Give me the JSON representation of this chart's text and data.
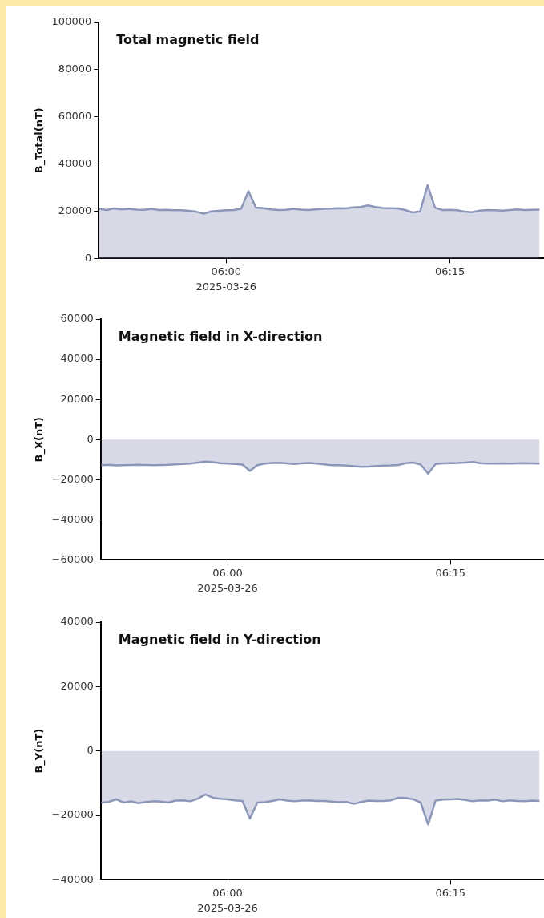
{
  "chart_data": [
    {
      "type": "area",
      "title": "Total magnetic field",
      "ylabel": "B_Total(nT)",
      "x": [
        "2025-03-26T05:51:30",
        "2025-03-26T05:52:00",
        "2025-03-26T05:52:30",
        "2025-03-26T05:53:00",
        "2025-03-26T05:53:30",
        "2025-03-26T05:54:00",
        "2025-03-26T05:54:30",
        "2025-03-26T05:55:00",
        "2025-03-26T05:55:30",
        "2025-03-26T05:56:00",
        "2025-03-26T05:56:30",
        "2025-03-26T05:57:00",
        "2025-03-26T05:57:30",
        "2025-03-26T05:58:00",
        "2025-03-26T05:58:30",
        "2025-03-26T05:59:00",
        "2025-03-26T05:59:30",
        "2025-03-26T06:00:00",
        "2025-03-26T06:00:30",
        "2025-03-26T06:01:00",
        "2025-03-26T06:01:30",
        "2025-03-26T06:02:00",
        "2025-03-26T06:02:30",
        "2025-03-26T06:03:00",
        "2025-03-26T06:03:30",
        "2025-03-26T06:04:00",
        "2025-03-26T06:04:30",
        "2025-03-26T06:05:00",
        "2025-03-26T06:05:30",
        "2025-03-26T06:06:00",
        "2025-03-26T06:06:30",
        "2025-03-26T06:07:00",
        "2025-03-26T06:07:30",
        "2025-03-26T06:08:00",
        "2025-03-26T06:08:30",
        "2025-03-26T06:09:00",
        "2025-03-26T06:09:30",
        "2025-03-26T06:10:00",
        "2025-03-26T06:10:30",
        "2025-03-26T06:11:00",
        "2025-03-26T06:11:30",
        "2025-03-26T06:12:00",
        "2025-03-26T06:12:30",
        "2025-03-26T06:13:00",
        "2025-03-26T06:13:30",
        "2025-03-26T06:14:00",
        "2025-03-26T06:14:30",
        "2025-03-26T06:15:00",
        "2025-03-26T06:15:30",
        "2025-03-26T06:16:00",
        "2025-03-26T06:16:30",
        "2025-03-26T06:17:00",
        "2025-03-26T06:17:30",
        "2025-03-26T06:18:00",
        "2025-03-26T06:18:30",
        "2025-03-26T06:19:00",
        "2025-03-26T06:19:30",
        "2025-03-26T06:20:00",
        "2025-03-26T06:20:30",
        "2025-03-26T06:21:00"
      ],
      "series": [
        {
          "color": "#8c96b8",
          "values": [
            21000,
            20500,
            21200,
            20800,
            21000,
            20700,
            20600,
            21000,
            20500,
            20600,
            20400,
            20400,
            20200,
            19800,
            19000,
            19900,
            20200,
            20400,
            20500,
            21000,
            28500,
            21500,
            21300,
            20800,
            20500,
            20600,
            21000,
            20700,
            20500,
            20800,
            21000,
            21100,
            21300,
            21200,
            21600,
            21800,
            22500,
            21800,
            21400,
            21300,
            21200,
            20500,
            19500,
            19900,
            31000,
            21500,
            20500,
            20600,
            20400,
            19800,
            19600,
            20300,
            20500,
            20400,
            20300,
            20500,
            20800,
            20500,
            20600,
            20700
          ]
        }
      ],
      "xlim": [
        "2025-03-26T05:51:28",
        "2025-03-26T06:21:18"
      ],
      "xticks": [
        {
          "value": "2025-03-26T06:00",
          "label": "06:00"
        },
        {
          "value": "2025-03-26T06:15",
          "label": "06:15"
        }
      ],
      "annotations": [
        "2025-03-26"
      ],
      "ylim": [
        0,
        100000
      ],
      "yticks": [
        0,
        20000,
        40000,
        60000,
        80000,
        100000
      ],
      "grid": false,
      "legend": false,
      "marker": "none"
    },
    {
      "type": "area",
      "title": "Magnetic field in X-direction",
      "ylabel": "B_X(nT)",
      "x": [
        "2025-03-26T05:51:30",
        "2025-03-26T05:52:00",
        "2025-03-26T05:52:30",
        "2025-03-26T05:53:00",
        "2025-03-26T05:53:30",
        "2025-03-26T05:54:00",
        "2025-03-26T05:54:30",
        "2025-03-26T05:55:00",
        "2025-03-26T05:55:30",
        "2025-03-26T05:56:00",
        "2025-03-26T05:56:30",
        "2025-03-26T05:57:00",
        "2025-03-26T05:57:30",
        "2025-03-26T05:58:00",
        "2025-03-26T05:58:30",
        "2025-03-26T05:59:00",
        "2025-03-26T05:59:30",
        "2025-03-26T06:00:00",
        "2025-03-26T06:00:30",
        "2025-03-26T06:01:00",
        "2025-03-26T06:01:30",
        "2025-03-26T06:02:00",
        "2025-03-26T06:02:30",
        "2025-03-26T06:03:00",
        "2025-03-26T06:03:30",
        "2025-03-26T06:04:00",
        "2025-03-26T06:04:30",
        "2025-03-26T06:05:00",
        "2025-03-26T06:05:30",
        "2025-03-26T06:06:00",
        "2025-03-26T06:06:30",
        "2025-03-26T06:07:00",
        "2025-03-26T06:07:30",
        "2025-03-26T06:08:00",
        "2025-03-26T06:08:30",
        "2025-03-26T06:09:00",
        "2025-03-26T06:09:30",
        "2025-03-26T06:10:00",
        "2025-03-26T06:10:30",
        "2025-03-26T06:11:00",
        "2025-03-26T06:11:30",
        "2025-03-26T06:12:00",
        "2025-03-26T06:12:30",
        "2025-03-26T06:13:00",
        "2025-03-26T06:13:30",
        "2025-03-26T06:14:00",
        "2025-03-26T06:14:30",
        "2025-03-26T06:15:00",
        "2025-03-26T06:15:30",
        "2025-03-26T06:16:00",
        "2025-03-26T06:16:30",
        "2025-03-26T06:17:00",
        "2025-03-26T06:17:30",
        "2025-03-26T06:18:00",
        "2025-03-26T06:18:30",
        "2025-03-26T06:19:00",
        "2025-03-26T06:19:30",
        "2025-03-26T06:20:00",
        "2025-03-26T06:20:30",
        "2025-03-26T06:21:00"
      ],
      "series": [
        {
          "color": "#8c96b8",
          "values": [
            -12800,
            -12600,
            -12900,
            -12800,
            -12700,
            -12600,
            -12700,
            -12800,
            -12700,
            -12600,
            -12400,
            -12200,
            -12000,
            -11500,
            -11000,
            -11300,
            -11800,
            -12000,
            -12200,
            -12500,
            -15600,
            -12800,
            -12000,
            -11700,
            -11600,
            -11900,
            -12200,
            -11900,
            -11700,
            -12000,
            -12400,
            -12800,
            -12800,
            -13000,
            -13300,
            -13600,
            -13500,
            -13200,
            -13000,
            -12900,
            -12700,
            -11800,
            -11500,
            -12500,
            -17000,
            -12200,
            -11900,
            -11800,
            -11700,
            -11500,
            -11200,
            -11800,
            -12000,
            -12000,
            -11900,
            -12000,
            -11900,
            -11800,
            -11900,
            -12000
          ]
        }
      ],
      "xlim": [
        "2025-03-26T05:51:28",
        "2025-03-26T06:21:18"
      ],
      "xticks": [
        {
          "value": "2025-03-26T06:00",
          "label": "06:00"
        },
        {
          "value": "2025-03-26T06:15",
          "label": "06:15"
        }
      ],
      "annotations": [
        "2025-03-26"
      ],
      "ylim": [
        -60000,
        60000
      ],
      "yticks": [
        -60000,
        -40000,
        -20000,
        0,
        20000,
        40000,
        60000
      ],
      "grid": false,
      "legend": false,
      "marker": "none"
    },
    {
      "type": "area",
      "title": "Magnetic field in Y-direction",
      "ylabel": "B_Y(nT)",
      "x": [
        "2025-03-26T05:51:30",
        "2025-03-26T05:52:00",
        "2025-03-26T05:52:30",
        "2025-03-26T05:53:00",
        "2025-03-26T05:53:30",
        "2025-03-26T05:54:00",
        "2025-03-26T05:54:30",
        "2025-03-26T05:55:00",
        "2025-03-26T05:55:30",
        "2025-03-26T05:56:00",
        "2025-03-26T05:56:30",
        "2025-03-26T05:57:00",
        "2025-03-26T05:57:30",
        "2025-03-26T05:58:00",
        "2025-03-26T05:58:30",
        "2025-03-26T05:59:00",
        "2025-03-26T05:59:30",
        "2025-03-26T06:00:00",
        "2025-03-26T06:00:30",
        "2025-03-26T06:01:00",
        "2025-03-26T06:01:30",
        "2025-03-26T06:02:00",
        "2025-03-26T06:02:30",
        "2025-03-26T06:03:00",
        "2025-03-26T06:03:30",
        "2025-03-26T06:04:00",
        "2025-03-26T06:04:30",
        "2025-03-26T06:05:00",
        "2025-03-26T06:05:30",
        "2025-03-26T06:06:00",
        "2025-03-26T06:06:30",
        "2025-03-26T06:07:00",
        "2025-03-26T06:07:30",
        "2025-03-26T06:08:00",
        "2025-03-26T06:08:30",
        "2025-03-26T06:09:00",
        "2025-03-26T06:09:30",
        "2025-03-26T06:10:00",
        "2025-03-26T06:10:30",
        "2025-03-26T06:11:00",
        "2025-03-26T06:11:30",
        "2025-03-26T06:12:00",
        "2025-03-26T06:12:30",
        "2025-03-26T06:13:00",
        "2025-03-26T06:13:30",
        "2025-03-26T06:14:00",
        "2025-03-26T06:14:30",
        "2025-03-26T06:15:00",
        "2025-03-26T06:15:30",
        "2025-03-26T06:16:00",
        "2025-03-26T06:16:30",
        "2025-03-26T06:17:00",
        "2025-03-26T06:17:30",
        "2025-03-26T06:18:00",
        "2025-03-26T06:18:30",
        "2025-03-26T06:19:00",
        "2025-03-26T06:19:30",
        "2025-03-26T06:20:00",
        "2025-03-26T06:20:30",
        "2025-03-26T06:21:00"
      ],
      "series": [
        {
          "color": "#8c96b8",
          "values": [
            -16000,
            -15800,
            -15000,
            -16000,
            -15600,
            -16200,
            -15800,
            -15600,
            -15700,
            -16000,
            -15400,
            -15300,
            -15600,
            -14800,
            -13500,
            -14500,
            -14800,
            -15000,
            -15300,
            -15500,
            -21000,
            -16000,
            -15900,
            -15500,
            -15000,
            -15400,
            -15600,
            -15400,
            -15300,
            -15500,
            -15500,
            -15700,
            -15900,
            -15800,
            -16400,
            -15800,
            -15400,
            -15500,
            -15500,
            -15300,
            -14500,
            -14600,
            -15000,
            -16000,
            -22800,
            -15400,
            -15100,
            -15000,
            -14900,
            -15200,
            -15600,
            -15300,
            -15400,
            -15100,
            -15600,
            -15300,
            -15500,
            -15600,
            -15400,
            -15500
          ]
        }
      ],
      "xlim": [
        "2025-03-26T05:51:28",
        "2025-03-26T06:21:18"
      ],
      "xticks": [
        {
          "value": "2025-03-26T06:00",
          "label": "06:00"
        },
        {
          "value": "2025-03-26T06:15",
          "label": "06:15"
        }
      ],
      "annotations": [
        "2025-03-26"
      ],
      "ylim": [
        -40000,
        40000
      ],
      "yticks": [
        -40000,
        -20000,
        0,
        20000,
        40000
      ],
      "grid": false,
      "legend": false,
      "marker": "none"
    }
  ]
}
